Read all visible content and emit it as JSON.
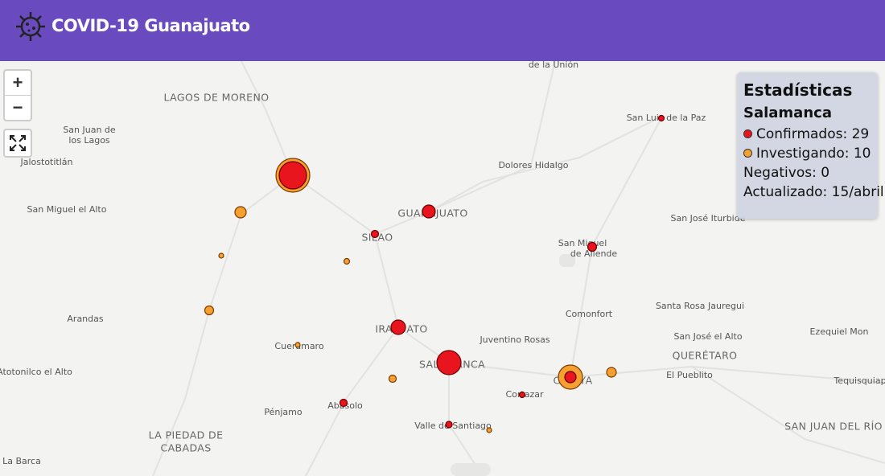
{
  "header": {
    "title": "COVID-19 Guanajuato"
  },
  "controls": {
    "zoom_in": "+",
    "zoom_out": "−"
  },
  "panel": {
    "title": "Estadísticas",
    "place": "Salamanca",
    "confirmed": "Confirmados: 29",
    "investigating": "Investigando: 10",
    "negatives": "Negativos: 0",
    "updated": "Actualizado: 15/abril"
  },
  "map": {
    "labels": [
      "de la Unión",
      "LAGOS DE MORENO",
      "San Luis de la Paz",
      "San Juan de",
      "los Lagos",
      "Jalostotitlán",
      "Dolores Hidalgo",
      "San Miguel el Alto",
      "GUANAJUATO",
      "San José Iturbide",
      "SILAO",
      "San Miguel",
      "de Allende",
      "Comonfort",
      "Santa Rosa Jauregui",
      "Arandas",
      "IRAPUATO",
      "Juventino Rosas",
      "San José el Alto",
      "Ezequiel Mon",
      "Cuerámaro",
      "QUERÉTARO",
      "Atotonilco el Alto",
      "SALAMANCA",
      "El Pueblito",
      "CELAYA",
      "Tequisquiap",
      "Cortazar",
      "Abasolo",
      "Pénjamo",
      "Valle de Santiago",
      "SAN JUAN DEL RÍO",
      "LA PIEDAD DE",
      "CABADAS",
      "La Barca"
    ]
  }
}
